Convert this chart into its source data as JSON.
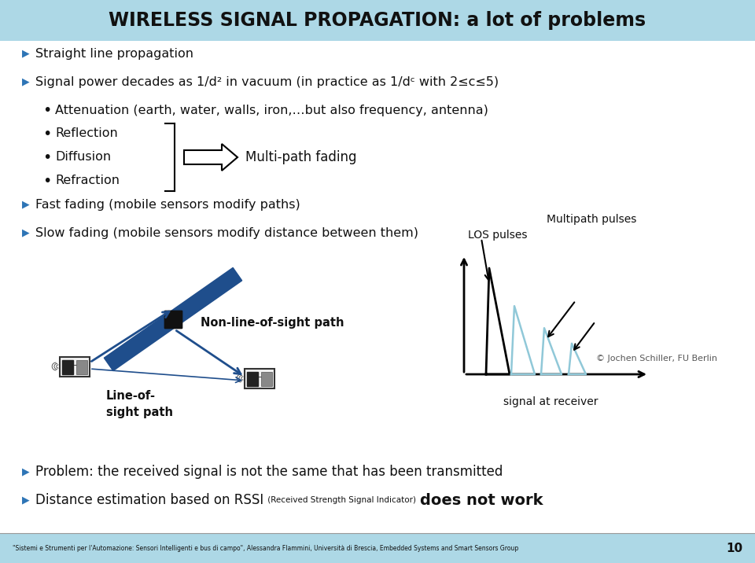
{
  "title": "WIRELESS SIGNAL PROPAGATION: a lot of problems",
  "title_bg": "#add8e6",
  "slide_bg": "#ffffff",
  "footer_bg": "#add8e6",
  "footer_text": "\"Sistemi e Strumenti per l'Automazione: Sensori Intelligenti e bus di campo\", Alessandra Flammini, Università di Brescia, Embedded Systems and Smart Sensors Group",
  "page_number": "10",
  "bullet_color": "#2e75b6",
  "text_color": "#111111",
  "bullet_items": [
    {
      "level": 0,
      "text": "Straight line propagation"
    },
    {
      "level": 0,
      "text": "Signal power decades as 1/d² in vacuum (in practice as 1/dᶜ with 2≤c≤5)"
    },
    {
      "level": 1,
      "text": "Attenuation (earth, water, walls, iron,…but also frequency, antenna)"
    },
    {
      "level": 1,
      "text": "Reflection",
      "brace": true
    },
    {
      "level": 1,
      "text": "Diffusion",
      "brace": true
    },
    {
      "level": 1,
      "text": "Refraction",
      "brace": true
    },
    {
      "level": 0,
      "text": "Fast fading (mobile sensors modify paths)"
    },
    {
      "level": 0,
      "text": "Slow fading (mobile sensors modify distance between them)"
    }
  ],
  "multipath_label": "Multi-path fading",
  "los_label": "LOS pulses",
  "multipath_pulses_label": "Multipath pulses",
  "signal_receiver_label": "signal at receiver",
  "copyright_label": "© Jochen Schiller, FU Berlin",
  "nonlos_label": "Non-line-of-sight path",
  "los_path_label": "Line-of-\nsight path",
  "problem_line1": "Problem: the received signal is not the same that has been transmitted",
  "problem_line2_pre": "Distance estimation based on RSSI",
  "problem_line2_sub": " (Received Strength Signal Indicator) ",
  "problem_line2_post": "does not work",
  "wall_color": "#1a3a6b",
  "nlos_color": "#1f4e8c",
  "mp_pulse_color": "#90c8d8",
  "los_pulse_color": "#000000"
}
